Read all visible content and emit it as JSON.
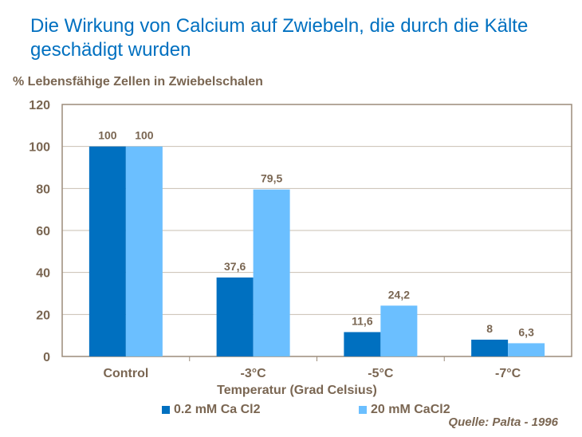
{
  "chart_data": {
    "type": "bar",
    "title": "Die Wirkung von Calcium auf Zwiebeln, die durch die Kälte geschädigt wurden",
    "ylabel": "% Lebensfähige Zellen in Zwiebelschalen",
    "xlabel": "Temperatur (Grad Celsius)",
    "categories": [
      "Control",
      "-3°C",
      "-5°C",
      "-7°C"
    ],
    "series": [
      {
        "name": "0.2 mM Ca Cl2",
        "values": [
          100,
          37.6,
          11.6,
          8
        ],
        "labels": [
          "100",
          "37,6",
          "11,6",
          "8"
        ],
        "color": "#0070c0"
      },
      {
        "name": "20 mM CaCl2",
        "values": [
          100,
          79.5,
          24.2,
          6.3
        ],
        "labels": [
          "100",
          "79,5",
          "24,2",
          "6,3"
        ],
        "color": "#6bbfff"
      }
    ],
    "ylim": [
      0,
      120
    ],
    "yticks": [
      0,
      20,
      40,
      60,
      80,
      100,
      120
    ],
    "grid": true,
    "legend": "bottom",
    "source": "Quelle: Palta - 1996"
  }
}
